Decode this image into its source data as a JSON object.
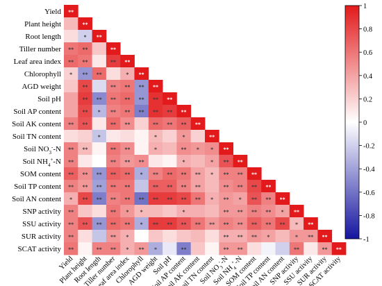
{
  "chart_data": {
    "type": "heatmap",
    "variables": [
      [
        "Yield"
      ],
      [
        "Plant height"
      ],
      [
        "Root length"
      ],
      [
        "Tiller number"
      ],
      [
        "Leaf area index"
      ],
      [
        "Chlorophyll"
      ],
      [
        "AGD weight"
      ],
      [
        "Soil pH"
      ],
      [
        "Soil AP content"
      ],
      [
        "Soil AK content"
      ],
      [
        "Soil TN content"
      ],
      [
        "Soil NO",
        "3",
        "-",
        "-N"
      ],
      [
        "Soil NH",
        "4",
        "+",
        "-N"
      ],
      [
        "SOM content"
      ],
      [
        "Soil TP content"
      ],
      [
        "Soil AN content"
      ],
      [
        "SNP activity"
      ],
      [
        "SSU activity"
      ],
      [
        "SUR activity"
      ],
      [
        "SCAT activity"
      ]
    ],
    "row_labels": [
      "Yield",
      "Plant height",
      "Root length",
      "Tiller number",
      "Leaf area index",
      "Chlorophyll",
      "AGD weight",
      "Soil pH",
      "Soil AP content",
      "Soil AK content",
      "Soil TN content",
      "Soil NO3–-N",
      "Soil NH4+-N",
      "SOM content",
      "Soil TP content",
      "Soil AN content",
      "SNP activity",
      "SSU activity",
      "SUR activity",
      "SCAT activity"
    ],
    "column_labels": [
      "Yield",
      "Plant height",
      "Root length",
      "Tiller number",
      "Leaf area index",
      "Chlorophyll",
      "AGD weight",
      "Soil pH",
      "Soil AP content",
      "Soil AK content",
      "Soil TN content",
      "Soil NO3–-N",
      "Soil NH4+-N",
      "SOM content",
      "Soil TP content",
      "Soil AN content",
      "SNP activity",
      "SSU activity",
      "SUR activity",
      "SCAT activity"
    ],
    "values": [
      [
        1.0
      ],
      [
        0.3,
        1.0
      ],
      [
        0.15,
        -0.2,
        1.0
      ],
      [
        0.6,
        0.65,
        0.25,
        1.0
      ],
      [
        0.65,
        0.6,
        0.1,
        0.85,
        1.0
      ],
      [
        0.2,
        -0.45,
        0.65,
        0.15,
        0.35,
        1.0
      ],
      [
        0.25,
        0.8,
        -0.15,
        0.55,
        0.6,
        -0.45,
        1.0
      ],
      [
        0.4,
        0.85,
        -0.5,
        0.6,
        0.65,
        -0.45,
        0.9,
        1.0
      ],
      [
        0.4,
        0.8,
        -0.3,
        0.55,
        0.6,
        -0.55,
        0.9,
        0.85,
        1.0
      ],
      [
        0.55,
        0.75,
        0.1,
        0.65,
        0.5,
        0.2,
        0.65,
        0.6,
        0.7,
        1.0
      ],
      [
        0.15,
        0.2,
        -0.25,
        0.1,
        0.15,
        0.05,
        0.3,
        0.2,
        0.45,
        0.2,
        1.0
      ],
      [
        0.55,
        0.3,
        0.05,
        0.6,
        0.5,
        0.05,
        0.35,
        0.3,
        0.5,
        0.45,
        0.5,
        1.0
      ],
      [
        0.55,
        0.1,
        0.0,
        0.55,
        0.45,
        0.5,
        0.1,
        0.05,
        0.35,
        0.3,
        0.4,
        0.75,
        1.0
      ],
      [
        0.7,
        0.5,
        -0.45,
        0.7,
        0.65,
        -0.35,
        0.55,
        0.65,
        0.6,
        0.4,
        0.3,
        0.55,
        0.55,
        1.0
      ],
      [
        0.55,
        0.45,
        -0.4,
        0.6,
        0.6,
        -0.25,
        0.7,
        0.7,
        0.55,
        0.4,
        0.3,
        0.5,
        0.55,
        0.8,
        1.0
      ],
      [
        0.35,
        0.8,
        -0.55,
        0.55,
        0.6,
        -0.6,
        0.85,
        0.85,
        0.8,
        0.6,
        0.35,
        0.45,
        0.4,
        0.75,
        0.55,
        1.0
      ],
      [
        0.55,
        0.25,
        0.15,
        0.6,
        0.45,
        0.3,
        0.3,
        0.25,
        0.35,
        0.35,
        0.3,
        0.45,
        0.45,
        0.55,
        0.5,
        0.4,
        1.0
      ],
      [
        0.55,
        0.75,
        -0.45,
        0.65,
        0.6,
        -0.35,
        0.85,
        0.85,
        0.75,
        0.6,
        0.45,
        0.55,
        0.5,
        0.7,
        0.6,
        0.8,
        0.3,
        1.0
      ],
      [
        0.55,
        0.15,
        -0.25,
        0.45,
        0.35,
        0.0,
        0.25,
        0.15,
        0.25,
        0.3,
        0.15,
        0.35,
        0.35,
        0.45,
        0.4,
        0.3,
        0.45,
        0.45,
        1.0
      ],
      [
        0.6,
        0.05,
        0.55,
        0.55,
        0.35,
        0.45,
        -0.35,
        -0.1,
        -0.55,
        0.25,
        0.05,
        0.45,
        0.45,
        0.15,
        -0.05,
        -0.2,
        0.6,
        0.1,
        0.45,
        1.0
      ]
    ],
    "significance": [
      [
        "**"
      ],
      [
        "",
        "**"
      ],
      [
        "",
        "*",
        "**"
      ],
      [
        "**",
        "**",
        "",
        "**"
      ],
      [
        "**",
        "**",
        "",
        "**",
        "**"
      ],
      [
        "*",
        "**",
        "**",
        "",
        "*",
        "**"
      ],
      [
        "",
        "**",
        "",
        "**",
        "**",
        "**",
        "**"
      ],
      [
        "",
        "**",
        "**",
        "**",
        "**",
        "**",
        "**",
        "**"
      ],
      [
        "",
        "**",
        "*",
        "**",
        "**",
        "**",
        "**",
        "**",
        "**"
      ],
      [
        "**",
        "**",
        "",
        "**",
        "**",
        "",
        "**",
        "**",
        "**",
        "**"
      ],
      [
        "",
        "",
        "*",
        "",
        "",
        "",
        "*",
        "",
        "*",
        "",
        "**"
      ],
      [
        "**",
        "**",
        "",
        "**",
        "**",
        "",
        "*",
        "",
        "**",
        "*",
        "*",
        "**"
      ],
      [
        "**",
        "",
        "",
        "**",
        "**",
        "**",
        "",
        "",
        "*",
        "",
        "*",
        "**",
        "**"
      ],
      [
        "**",
        "**",
        "**",
        "**",
        "**",
        "*",
        "**",
        "**",
        "**",
        "**",
        "*",
        "**",
        "**",
        "**"
      ],
      [
        "**",
        "**",
        "**",
        "**",
        "**",
        "",
        "**",
        "**",
        "**",
        "**",
        "",
        "**",
        "**",
        "**",
        "**"
      ],
      [
        "*",
        "**",
        "**",
        "**",
        "**",
        "**",
        "**",
        "**",
        "**",
        "**",
        "*",
        "**",
        "*",
        "**",
        "**",
        "**"
      ],
      [
        "**",
        "",
        "",
        "**",
        "*",
        "*",
        "",
        "",
        "*",
        "",
        "",
        "**",
        "**",
        "**",
        "**",
        "*",
        "**"
      ],
      [
        "**",
        "**",
        "**",
        "**",
        "**",
        "*",
        "**",
        "**",
        "**",
        "**",
        "**",
        "**",
        "**",
        "**",
        "**",
        "**",
        "*",
        "**"
      ],
      [
        "**",
        "",
        "",
        "**",
        "*",
        "",
        "",
        "",
        "",
        "",
        "",
        "**",
        "**",
        "**",
        "*",
        "",
        "*",
        "**",
        "**"
      ],
      [
        "**",
        "",
        "**",
        "**",
        "*",
        "**",
        "*",
        "",
        "**",
        "",
        "",
        "**",
        "**",
        "",
        "",
        "",
        "**",
        "",
        "**",
        "**"
      ]
    ],
    "colorbar": {
      "ticks": [
        "1",
        "0.8",
        "0.6",
        "0.4",
        "0.2",
        "0",
        "-0.2",
        "-0.4",
        "-0.6",
        "-0.8",
        "-1"
      ],
      "range": [
        -1,
        1
      ],
      "colors": {
        "high": "#E31A1C",
        "mid": "#ffffff",
        "low": "#1515A0"
      }
    }
  }
}
